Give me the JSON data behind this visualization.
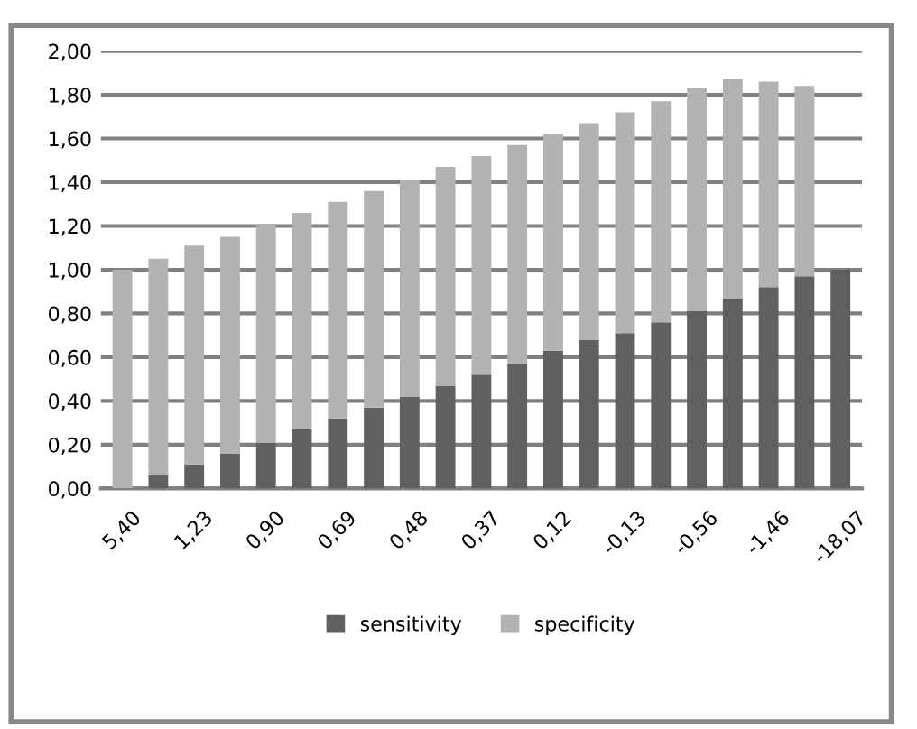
{
  "chart_data": {
    "type": "bar",
    "stacked": true,
    "grid": "y",
    "legend": "bottom",
    "categories": [
      "5,40",
      null,
      "1,23",
      null,
      "0,90",
      null,
      "0,69",
      null,
      "0,48",
      null,
      "0,37",
      null,
      "0,12",
      null,
      "-0,13",
      null,
      "-0,56",
      null,
      "-1,46",
      null,
      "-18,07"
    ],
    "series": [
      {
        "name": "sensitivity",
        "color": "#606060",
        "values": [
          0,
          0.06,
          0.11,
          0.16,
          0.21,
          0.27,
          0.32,
          0.37,
          0.42,
          0.47,
          0.52,
          0.57,
          0.63,
          0.68,
          0.71,
          0.76,
          0.81,
          0.87,
          0.92,
          0.97,
          1.0
        ]
      },
      {
        "name": "specificity",
        "color": "#b2b2b2",
        "values": [
          1.0,
          0.99,
          1.0,
          0.99,
          1.0,
          0.99,
          0.99,
          0.99,
          0.99,
          1.0,
          1.0,
          1.0,
          0.99,
          0.99,
          1.01,
          1.01,
          1.02,
          1.0,
          0.94,
          0.87,
          0
        ]
      }
    ],
    "ylim": [
      0,
      2
    ],
    "yticks": [
      {
        "value": 0,
        "label": "0,00"
      },
      {
        "value": 0.2,
        "label": "0,20"
      },
      {
        "value": 0.4,
        "label": "0,40"
      },
      {
        "value": 0.6,
        "label": "0,60"
      },
      {
        "value": 0.8,
        "label": "0,80"
      },
      {
        "value": 1.0,
        "label": "1,00"
      },
      {
        "value": 1.2,
        "label": "1,20"
      },
      {
        "value": 1.4,
        "label": "1,40"
      },
      {
        "value": 1.6,
        "label": "1,60"
      },
      {
        "value": 1.8,
        "label": "1,80"
      },
      {
        "value": 2.0,
        "label": "2,00"
      }
    ]
  }
}
